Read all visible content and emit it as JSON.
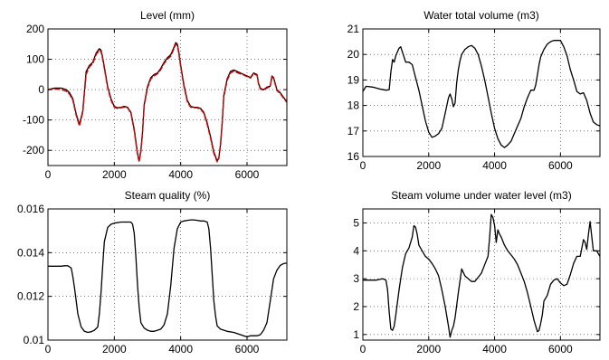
{
  "figure": {
    "background": "#ffffff"
  },
  "chart_data": [
    {
      "id": "level",
      "type": "line",
      "title": "Level (mm)",
      "xlabel": "",
      "ylabel": "",
      "xlim": [
        0,
        7200
      ],
      "ylim": [
        -250,
        200
      ],
      "xticks": [
        0,
        2000,
        4000,
        6000
      ],
      "yticks": [
        -200,
        -100,
        0,
        100,
        200
      ],
      "xticklabels": [
        "0",
        "2000",
        "4000",
        "6000"
      ],
      "yticklabels": [
        "-200",
        "-100",
        "0",
        "100",
        "200"
      ],
      "grid": true,
      "series": [
        {
          "color": "#000000",
          "style": "solid",
          "x": [
            0,
            200,
            400,
            550,
            650,
            750,
            850,
            950,
            1050,
            1150,
            1250,
            1350,
            1450,
            1550,
            1600,
            1650,
            1700,
            1800,
            1900,
            2000,
            2100,
            2200,
            2300,
            2400,
            2500,
            2600,
            2700,
            2750,
            2800,
            2850,
            2900,
            3000,
            3100,
            3200,
            3300,
            3400,
            3500,
            3600,
            3700,
            3800,
            3850,
            3900,
            3950,
            4000,
            4100,
            4200,
            4300,
            4400,
            4500,
            4600,
            4700,
            4800,
            4900,
            5000,
            5100,
            5150,
            5200,
            5250,
            5300,
            5400,
            5500,
            5600,
            5700,
            5800,
            5900,
            6000,
            6100,
            6200,
            6300,
            6350,
            6400,
            6450,
            6500,
            6600,
            6700,
            6750,
            6800,
            6850,
            6900,
            7000,
            7100,
            7200
          ],
          "values": [
            0,
            5,
            5,
            0,
            -10,
            -30,
            -80,
            -115,
            -70,
            60,
            80,
            90,
            120,
            135,
            130,
            105,
            75,
            10,
            -30,
            -55,
            -60,
            -58,
            -55,
            -58,
            -75,
            -130,
            -210,
            -235,
            -200,
            -140,
            -50,
            10,
            40,
            50,
            55,
            70,
            90,
            105,
            115,
            140,
            155,
            150,
            120,
            80,
            15,
            -35,
            -55,
            -58,
            -58,
            -62,
            -75,
            -110,
            -155,
            -205,
            -235,
            -225,
            -180,
            -110,
            -20,
            35,
            60,
            65,
            60,
            55,
            50,
            45,
            40,
            55,
            50,
            20,
            5,
            2,
            0,
            8,
            12,
            45,
            40,
            20,
            0,
            -10,
            -25,
            -40
          ]
        },
        {
          "color": "#e00000",
          "style": "dashed",
          "x": [
            0,
            200,
            400,
            550,
            650,
            750,
            850,
            950,
            1050,
            1150,
            1250,
            1350,
            1450,
            1550,
            1600,
            1650,
            1700,
            1800,
            1900,
            2000,
            2100,
            2200,
            2300,
            2400,
            2500,
            2600,
            2700,
            2750,
            2800,
            2850,
            2900,
            3000,
            3100,
            3200,
            3300,
            3400,
            3500,
            3600,
            3700,
            3800,
            3850,
            3900,
            3950,
            4000,
            4100,
            4200,
            4300,
            4400,
            4500,
            4600,
            4700,
            4800,
            4900,
            5000,
            5100,
            5150,
            5200,
            5250,
            5300,
            5400,
            5500,
            5600,
            5700,
            5800,
            5900,
            6000,
            6100,
            6200,
            6300,
            6350,
            6400,
            6450,
            6500,
            6600,
            6700,
            6750,
            6800,
            6850,
            6900,
            7000,
            7100,
            7200
          ],
          "values": [
            0,
            2,
            0,
            -5,
            -15,
            -35,
            -85,
            -120,
            -75,
            50,
            75,
            85,
            115,
            130,
            125,
            100,
            70,
            5,
            -35,
            -58,
            -62,
            -60,
            -58,
            -60,
            -78,
            -135,
            -215,
            -238,
            -205,
            -145,
            -55,
            5,
            35,
            45,
            52,
            66,
            86,
            100,
            110,
            135,
            150,
            145,
            115,
            75,
            10,
            -40,
            -58,
            -60,
            -60,
            -65,
            -78,
            -115,
            -160,
            -210,
            -238,
            -228,
            -185,
            -115,
            -25,
            30,
            55,
            60,
            56,
            52,
            48,
            43,
            38,
            52,
            47,
            17,
            2,
            0,
            -2,
            5,
            10,
            42,
            37,
            17,
            -3,
            -13,
            -28,
            -42
          ]
        }
      ]
    },
    {
      "id": "water_volume",
      "type": "line",
      "title": "Water total volume (m3)",
      "xlabel": "",
      "ylabel": "",
      "xlim": [
        0,
        7200
      ],
      "ylim": [
        16,
        21
      ],
      "xticks": [
        0,
        2000,
        4000,
        6000
      ],
      "yticks": [
        16,
        17,
        18,
        19,
        20,
        21
      ],
      "xticklabels": [
        "0",
        "2000",
        "4000",
        "6000"
      ],
      "yticklabels": [
        "16",
        "17",
        "18",
        "19",
        "20",
        "21"
      ],
      "grid": true,
      "series": [
        {
          "color": "#000000",
          "style": "solid",
          "x": [
            0,
            100,
            300,
            500,
            700,
            800,
            850,
            900,
            950,
            1000,
            1050,
            1100,
            1150,
            1200,
            1250,
            1300,
            1400,
            1500,
            1600,
            1700,
            1800,
            1900,
            2000,
            2100,
            2200,
            2300,
            2400,
            2500,
            2600,
            2650,
            2700,
            2750,
            2800,
            2850,
            2900,
            2950,
            3000,
            3100,
            3200,
            3300,
            3400,
            3500,
            3600,
            3700,
            3800,
            3900,
            4000,
            4100,
            4200,
            4300,
            4400,
            4500,
            4600,
            4700,
            4800,
            4900,
            5000,
            5100,
            5200,
            5250,
            5300,
            5350,
            5400,
            5500,
            5600,
            5700,
            5800,
            5900,
            6000,
            6100,
            6200,
            6300,
            6400,
            6500,
            6600,
            6700,
            6800,
            6900,
            7000,
            7100,
            7200
          ],
          "values": [
            18.55,
            18.75,
            18.72,
            18.65,
            18.6,
            18.62,
            19.3,
            19.8,
            19.7,
            19.95,
            20.1,
            20.25,
            20.3,
            20.1,
            19.9,
            19.7,
            19.7,
            19.6,
            19.1,
            18.6,
            18.0,
            17.4,
            16.95,
            16.75,
            16.8,
            16.9,
            17.1,
            17.7,
            18.3,
            18.45,
            18.25,
            17.95,
            18.1,
            18.9,
            19.4,
            19.75,
            20.0,
            20.2,
            20.3,
            20.35,
            20.25,
            20.0,
            19.55,
            19.0,
            18.35,
            17.7,
            17.1,
            16.7,
            16.45,
            16.35,
            16.45,
            16.6,
            16.9,
            17.2,
            17.5,
            17.95,
            18.3,
            18.6,
            18.6,
            18.8,
            19.2,
            19.6,
            19.9,
            20.2,
            20.4,
            20.5,
            20.55,
            20.55,
            20.55,
            20.3,
            19.95,
            19.4,
            19.0,
            18.55,
            18.45,
            18.5,
            18.2,
            17.7,
            17.35,
            17.25,
            17.2
          ]
        }
      ]
    },
    {
      "id": "steam_quality",
      "type": "line",
      "title": "Steam quality (%)",
      "xlabel": "",
      "ylabel": "",
      "xlim": [
        0,
        7200
      ],
      "ylim": [
        0.01,
        0.016
      ],
      "xticks": [
        0,
        2000,
        4000,
        6000
      ],
      "yticks": [
        0.01,
        0.012,
        0.014,
        0.016
      ],
      "xticklabels": [
        "0",
        "2000",
        "4000",
        "6000"
      ],
      "yticklabels": [
        "0.01",
        "0.012",
        "0.014",
        "0.016"
      ],
      "grid": true,
      "series": [
        {
          "color": "#000000",
          "style": "solid",
          "x": [
            0,
            200,
            400,
            500,
            600,
            700,
            750,
            800,
            850,
            900,
            1000,
            1100,
            1200,
            1300,
            1400,
            1500,
            1550,
            1600,
            1650,
            1700,
            1800,
            1900,
            2000,
            2200,
            2400,
            2500,
            2550,
            2600,
            2650,
            2700,
            2750,
            2800,
            2900,
            3000,
            3100,
            3200,
            3300,
            3400,
            3500,
            3600,
            3700,
            3800,
            3900,
            4000,
            4100,
            4200,
            4300,
            4400,
            4500,
            4600,
            4700,
            4800,
            4850,
            4900,
            4950,
            5000,
            5050,
            5100,
            5200,
            5400,
            5600,
            5800,
            5900,
            6000,
            6100,
            6200,
            6300,
            6400,
            6500,
            6600,
            6700,
            6800,
            6900,
            7000,
            7100,
            7200
          ],
          "values": [
            0.01338,
            0.01338,
            0.01338,
            0.0134,
            0.0134,
            0.0133,
            0.0129,
            0.0124,
            0.0118,
            0.0112,
            0.0106,
            0.0104,
            0.01035,
            0.01038,
            0.01045,
            0.0106,
            0.0112,
            0.0122,
            0.0134,
            0.0145,
            0.01515,
            0.0153,
            0.01535,
            0.0154,
            0.0154,
            0.0154,
            0.0153,
            0.0149,
            0.0138,
            0.0125,
            0.0115,
            0.0108,
            0.01055,
            0.01045,
            0.0104,
            0.0104,
            0.01045,
            0.0105,
            0.0107,
            0.0112,
            0.0125,
            0.0142,
            0.0151,
            0.0154,
            0.01545,
            0.01548,
            0.0155,
            0.0155,
            0.01548,
            0.01545,
            0.01545,
            0.0154,
            0.0151,
            0.0142,
            0.013,
            0.0118,
            0.0111,
            0.01065,
            0.0105,
            0.0104,
            0.01035,
            0.01025,
            0.0102,
            0.01015,
            0.0102,
            0.0102,
            0.0102,
            0.01025,
            0.01045,
            0.0108,
            0.0118,
            0.0128,
            0.0132,
            0.01342,
            0.0135,
            0.01352
          ]
        }
      ]
    },
    {
      "id": "steam_volume",
      "type": "line",
      "title": "Steam volume under water level (m3)",
      "xlabel": "",
      "ylabel": "",
      "xlim": [
        0,
        7200
      ],
      "ylim": [
        0.8,
        5.5
      ],
      "xticks": [
        0,
        2000,
        4000,
        6000
      ],
      "yticks": [
        1,
        2,
        3,
        4,
        5
      ],
      "xticklabels": [
        "0",
        "2000",
        "4000",
        "6000"
      ],
      "yticklabels": [
        "1",
        "2",
        "3",
        "4",
        "5"
      ],
      "grid": true,
      "series": [
        {
          "color": "#000000",
          "style": "solid",
          "x": [
            0,
            200,
            400,
            600,
            700,
            750,
            800,
            850,
            900,
            950,
            1000,
            1100,
            1200,
            1300,
            1400,
            1500,
            1550,
            1600,
            1650,
            1700,
            1800,
            1900,
            2000,
            2100,
            2200,
            2300,
            2400,
            2500,
            2600,
            2650,
            2700,
            2750,
            2800,
            2900,
            3000,
            3100,
            3200,
            3300,
            3400,
            3500,
            3600,
            3700,
            3800,
            3850,
            3900,
            3950,
            4000,
            4050,
            4100,
            4150,
            4200,
            4300,
            4400,
            4500,
            4600,
            4700,
            4800,
            4900,
            5000,
            5100,
            5200,
            5300,
            5350,
            5400,
            5450,
            5500,
            5600,
            5700,
            5800,
            5900,
            6000,
            6100,
            6200,
            6300,
            6400,
            6500,
            6600,
            6700,
            6750,
            6800,
            6850,
            6900,
            7000,
            7100,
            7200
          ],
          "values": [
            2.95,
            2.95,
            2.95,
            3.0,
            2.95,
            2.6,
            1.8,
            1.2,
            1.15,
            1.3,
            1.7,
            2.6,
            3.4,
            3.9,
            4.1,
            4.5,
            4.9,
            4.85,
            4.6,
            4.2,
            4.0,
            3.8,
            3.7,
            3.55,
            3.35,
            3.1,
            2.6,
            2.0,
            1.3,
            0.9,
            1.15,
            1.3,
            1.6,
            2.5,
            3.35,
            3.1,
            3.0,
            2.9,
            2.9,
            3.05,
            3.2,
            3.5,
            3.8,
            4.5,
            5.3,
            5.2,
            4.9,
            4.3,
            4.75,
            4.6,
            4.5,
            4.2,
            4.0,
            3.85,
            3.7,
            3.5,
            3.2,
            2.9,
            2.5,
            2.0,
            1.5,
            1.1,
            1.15,
            1.4,
            1.7,
            2.2,
            2.4,
            2.8,
            2.95,
            3.0,
            2.85,
            2.75,
            2.8,
            3.15,
            3.55,
            3.8,
            3.8,
            4.4,
            4.3,
            4.05,
            4.6,
            5.05,
            4.0,
            4.0,
            3.8
          ]
        }
      ]
    }
  ]
}
